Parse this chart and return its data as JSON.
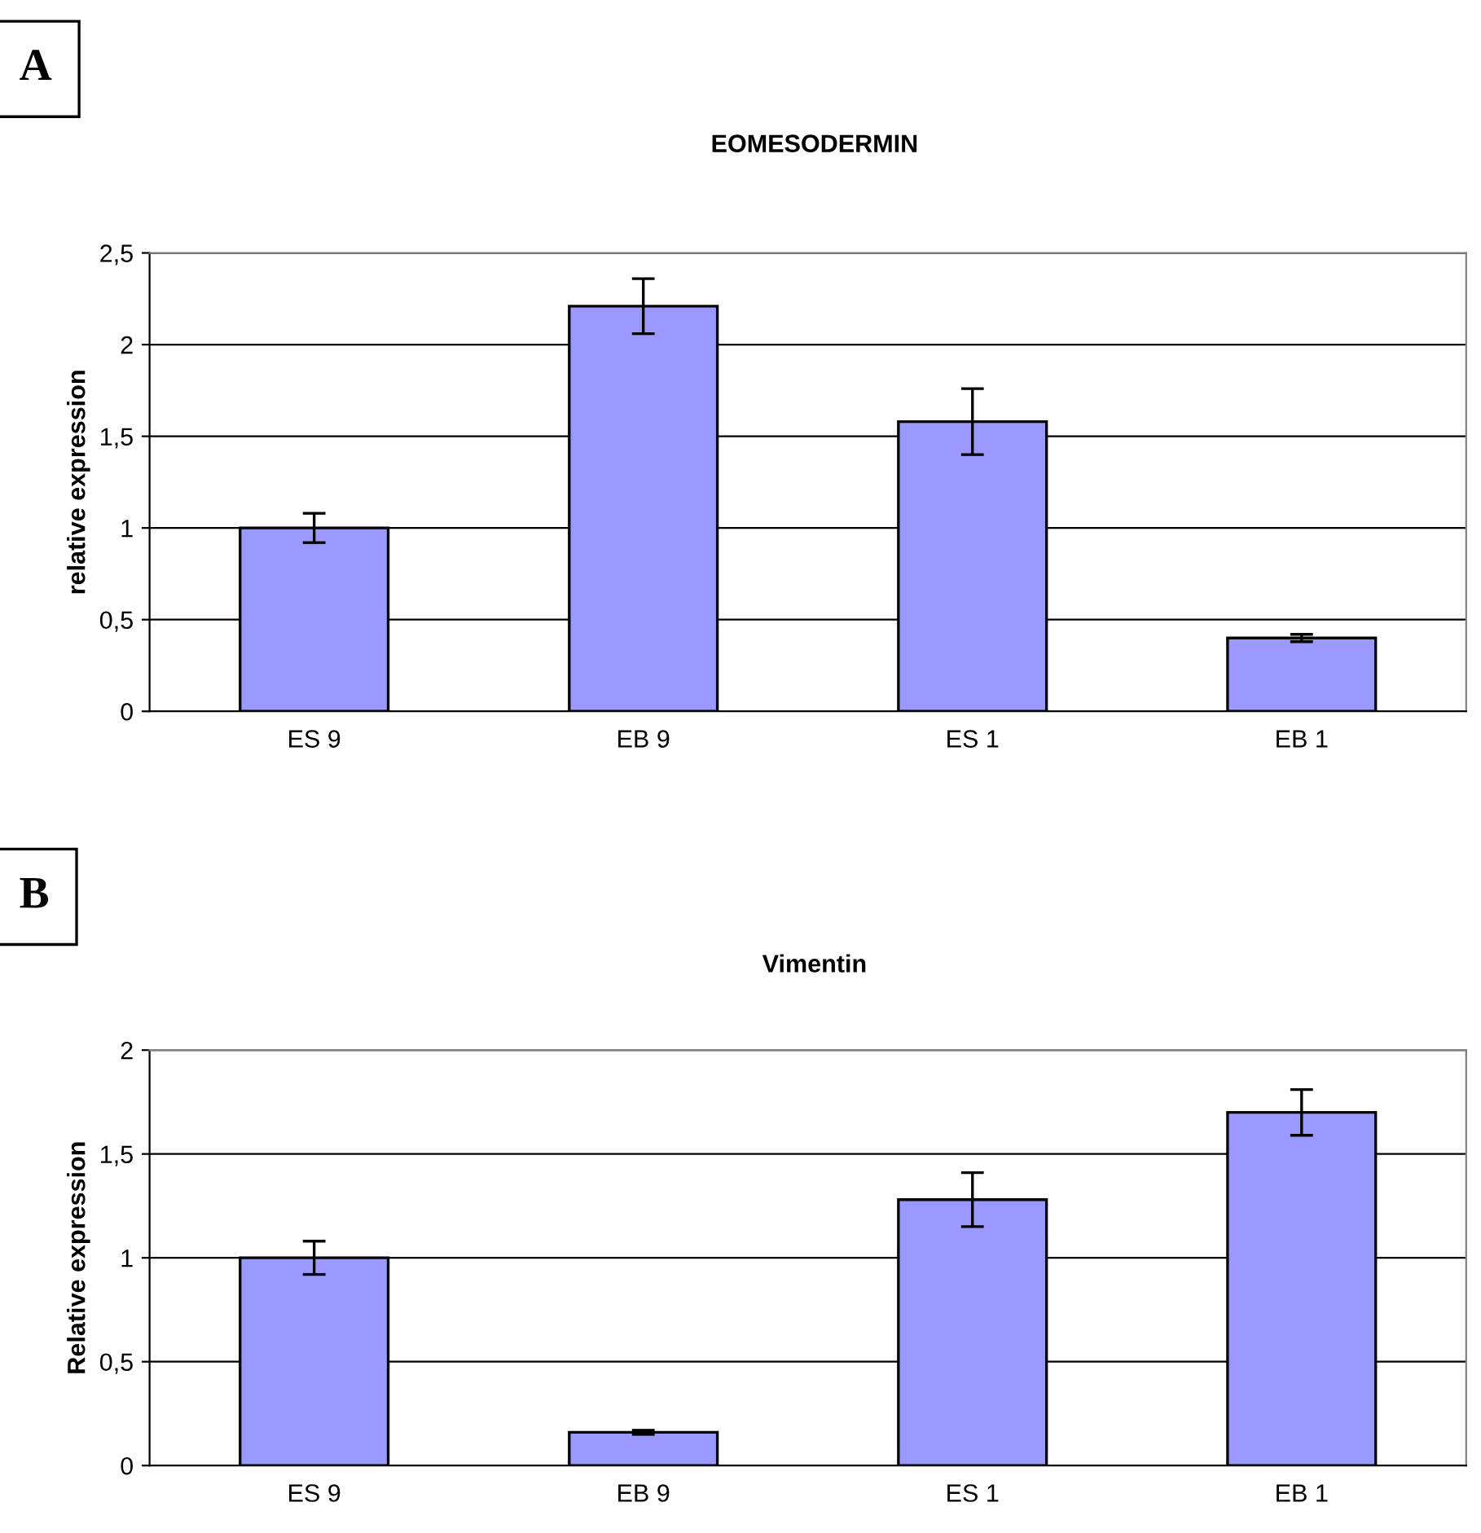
{
  "chart_data": [
    {
      "type": "bar",
      "title": "EOMESODERMIN",
      "ylabel": "relative expression",
      "annotations": [
        "A"
      ],
      "categories": [
        "ES 9",
        "EB 9",
        "ES 1",
        "EB 1"
      ],
      "values": [
        1.0,
        2.21,
        1.58,
        0.4
      ],
      "errors": [
        0.08,
        0.15,
        0.18,
        0.02
      ],
      "color": "#9999ff",
      "ylim": [
        0,
        2.5
      ],
      "yticks": [
        0,
        {
          "value": 0.5,
          "label": "0,5"
        },
        1,
        {
          "value": 1.5,
          "label": "1,5"
        },
        2,
        {
          "value": 2.5,
          "label": "2,5"
        }
      ],
      "grid": "y"
    },
    {
      "type": "bar",
      "title": "Vimentin",
      "ylabel": "Relative expression",
      "annotations": [
        "B"
      ],
      "categories": [
        "ES 9",
        "EB 9",
        "ES 1",
        "EB 1"
      ],
      "values": [
        1.0,
        0.16,
        1.28,
        1.7
      ],
      "errors": [
        0.08,
        0.01,
        0.13,
        0.11
      ],
      "color": "#9999ff",
      "ylim": [
        0,
        2
      ],
      "yticks": [
        0,
        {
          "value": 0.5,
          "label": "0,5"
        },
        1,
        {
          "value": 1.5,
          "label": "1,5"
        },
        2
      ],
      "grid": "y"
    }
  ]
}
